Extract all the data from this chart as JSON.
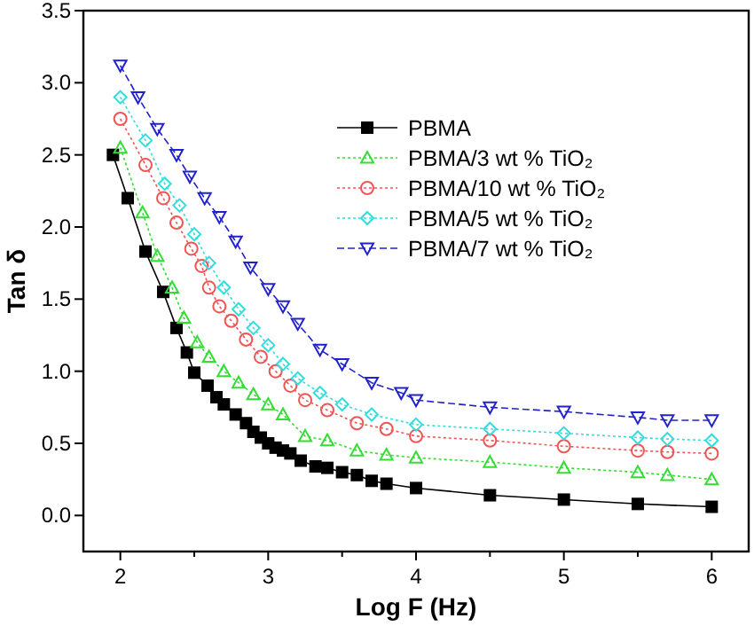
{
  "chart_data": {
    "type": "line",
    "xlabel": "Log F (Hz)",
    "ylabel": "Tan δ",
    "xlim": [
      1.75,
      6.25
    ],
    "ylim": [
      -0.25,
      3.5
    ],
    "xticks": [
      2,
      {
        "value": 2.5,
        "label": null
      },
      3,
      {
        "value": 3.5,
        "label": null
      },
      4,
      {
        "value": 4.5,
        "label": null
      },
      5,
      {
        "value": 5.5,
        "label": null
      },
      6
    ],
    "yticks": [
      {
        "value": 0,
        "label": "0.0"
      },
      {
        "value": 0.5,
        "label": "0.5"
      },
      {
        "value": 1,
        "label": "1.0"
      },
      {
        "value": 1.5,
        "label": "1.5"
      },
      {
        "value": 2,
        "label": "2.0"
      },
      {
        "value": 2.5,
        "label": "2.5"
      },
      {
        "value": 3,
        "label": "3.0"
      },
      {
        "value": 3.5,
        "label": "3.5"
      }
    ],
    "grid": false,
    "legend": "top right",
    "series": [
      {
        "name": "PBMA",
        "color": "#000000",
        "marker": "square",
        "line_style": "solid",
        "x": [
          1.95,
          2.05,
          2.17,
          2.29,
          2.38,
          2.45,
          2.5,
          2.59,
          2.65,
          2.7,
          2.78,
          2.85,
          2.9,
          2.95,
          3.0,
          3.05,
          3.1,
          3.15,
          3.22,
          3.32,
          3.4,
          3.5,
          3.6,
          3.7,
          3.8,
          4.0,
          4.5,
          5.0,
          5.5,
          6.0
        ],
        "values": [
          2.5,
          2.2,
          1.83,
          1.55,
          1.3,
          1.13,
          0.99,
          0.9,
          0.82,
          0.77,
          0.7,
          0.64,
          0.58,
          0.54,
          0.5,
          0.47,
          0.45,
          0.43,
          0.38,
          0.34,
          0.33,
          0.3,
          0.28,
          0.24,
          0.22,
          0.19,
          0.14,
          0.11,
          0.08,
          0.06
        ]
      },
      {
        "name": "PBMA/3 wt % TiO₂",
        "color": "#33dd33",
        "marker": "triangle",
        "line_style": "dotted",
        "x": [
          2.0,
          2.15,
          2.25,
          2.35,
          2.43,
          2.52,
          2.6,
          2.7,
          2.8,
          2.9,
          3.0,
          3.1,
          3.25,
          3.4,
          3.6,
          3.8,
          4.0,
          4.5,
          5.0,
          5.5,
          5.7,
          6.0
        ],
        "values": [
          2.55,
          2.1,
          1.8,
          1.58,
          1.37,
          1.2,
          1.1,
          1.0,
          0.92,
          0.84,
          0.77,
          0.7,
          0.55,
          0.52,
          0.45,
          0.42,
          0.4,
          0.37,
          0.33,
          0.3,
          0.28,
          0.25
        ]
      },
      {
        "name": "PBMA/10 wt % TiO₂",
        "color": "#ee5555",
        "marker": "circle",
        "line_style": "dotted",
        "x": [
          2.0,
          2.17,
          2.29,
          2.38,
          2.48,
          2.55,
          2.6,
          2.67,
          2.75,
          2.85,
          2.95,
          3.05,
          3.15,
          3.25,
          3.4,
          3.6,
          3.8,
          4.0,
          4.5,
          5.0,
          5.5,
          5.7,
          6.0
        ],
        "values": [
          2.75,
          2.43,
          2.2,
          2.03,
          1.85,
          1.73,
          1.58,
          1.45,
          1.35,
          1.22,
          1.1,
          1.0,
          0.9,
          0.8,
          0.73,
          0.64,
          0.6,
          0.55,
          0.52,
          0.48,
          0.45,
          0.44,
          0.43
        ]
      },
      {
        "name": "PBMA/5 wt % TiO₂",
        "color": "#33dddd",
        "marker": "diamond",
        "line_style": "dotted",
        "x": [
          2.0,
          2.17,
          2.3,
          2.4,
          2.5,
          2.6,
          2.7,
          2.8,
          2.9,
          3.0,
          3.1,
          3.2,
          3.35,
          3.5,
          3.7,
          4.0,
          4.5,
          5.0,
          5.5,
          5.7,
          6.0
        ],
        "values": [
          2.9,
          2.6,
          2.3,
          2.15,
          1.95,
          1.75,
          1.58,
          1.43,
          1.3,
          1.18,
          1.05,
          0.95,
          0.85,
          0.77,
          0.7,
          0.63,
          0.6,
          0.57,
          0.54,
          0.53,
          0.52
        ]
      },
      {
        "name": "PBMA/7 wt % TiO₂",
        "color": "#2222cc",
        "marker": "triangle-down",
        "line_style": "dashed",
        "x": [
          2.0,
          2.12,
          2.25,
          2.38,
          2.47,
          2.57,
          2.67,
          2.78,
          2.88,
          3.0,
          3.1,
          3.2,
          3.35,
          3.5,
          3.7,
          3.9,
          4.0,
          4.5,
          5.0,
          5.5,
          5.7,
          6.0
        ],
        "values": [
          3.12,
          2.9,
          2.68,
          2.5,
          2.35,
          2.2,
          2.07,
          1.9,
          1.72,
          1.57,
          1.45,
          1.33,
          1.15,
          1.05,
          0.92,
          0.85,
          0.8,
          0.75,
          0.72,
          0.68,
          0.66,
          0.66
        ]
      }
    ]
  }
}
